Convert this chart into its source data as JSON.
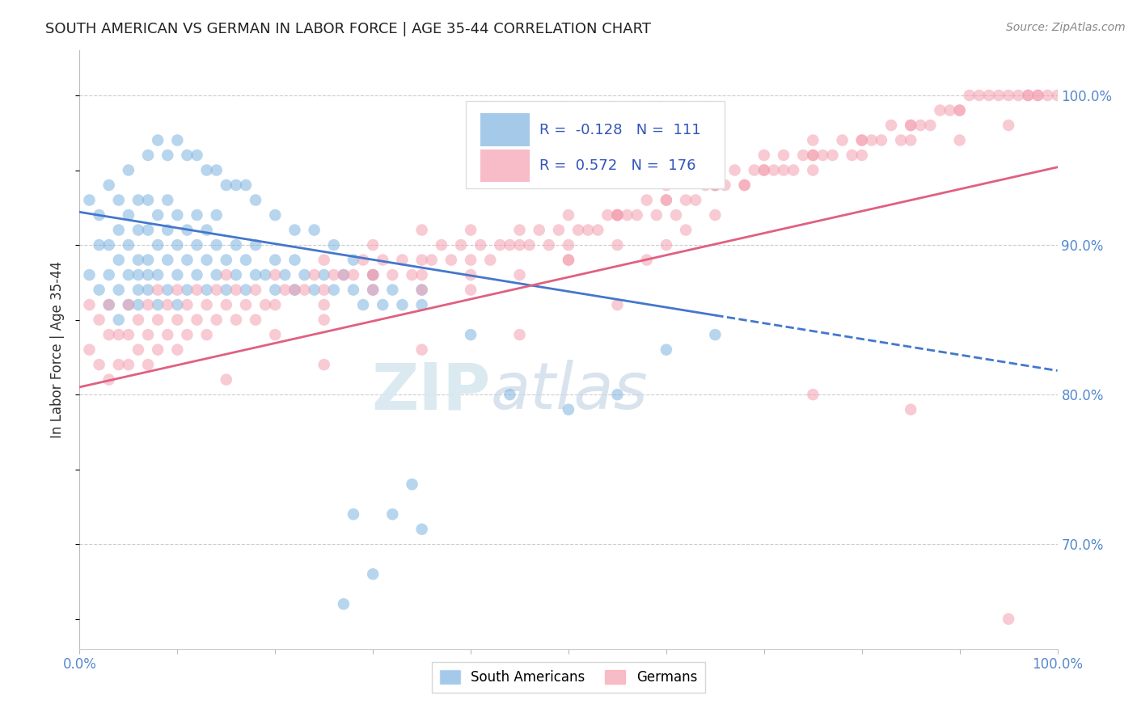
{
  "title": "SOUTH AMERICAN VS GERMAN IN LABOR FORCE | AGE 35-44 CORRELATION CHART",
  "source_text": "Source: ZipAtlas.com",
  "ylabel": "In Labor Force | Age 35-44",
  "xlim": [
    0.0,
    1.0
  ],
  "ylim": [
    0.63,
    1.03
  ],
  "x_ticks": [
    0.0,
    0.1,
    0.2,
    0.3,
    0.4,
    0.5,
    0.6,
    0.7,
    0.8,
    0.9,
    1.0
  ],
  "x_tick_labels": [
    "0.0%",
    "",
    "",
    "",
    "",
    "",
    "",
    "",
    "",
    "",
    "100.0%"
  ],
  "y_ticks_right": [
    0.7,
    0.8,
    0.9,
    1.0
  ],
  "y_tick_labels_right": [
    "70.0%",
    "80.0%",
    "90.0%",
    "100.0%"
  ],
  "grid_color": "#cccccc",
  "background_color": "#ffffff",
  "blue_color": "#7fb3e0",
  "pink_color": "#f4a0b0",
  "blue_line_color": "#4477cc",
  "pink_line_color": "#e06080",
  "R_blue": -0.128,
  "N_blue": 111,
  "R_pink": 0.572,
  "N_pink": 176,
  "watermark_zip": "ZIP",
  "watermark_atlas": "atlas",
  "legend_blue_label": "South Americans",
  "legend_pink_label": "Germans",
  "blue_line_x0": 0.0,
  "blue_line_y0": 0.922,
  "blue_line_x1": 0.65,
  "blue_line_y1": 0.853,
  "blue_line_dash_x0": 0.65,
  "blue_line_dash_y0": 0.853,
  "blue_line_dash_x1": 1.0,
  "blue_line_dash_y1": 0.816,
  "pink_line_x0": 0.0,
  "pink_line_y0": 0.805,
  "pink_line_x1": 1.0,
  "pink_line_y1": 0.952,
  "blue_scatter_x": [
    0.01,
    0.01,
    0.02,
    0.02,
    0.02,
    0.03,
    0.03,
    0.03,
    0.03,
    0.04,
    0.04,
    0.04,
    0.04,
    0.04,
    0.05,
    0.05,
    0.05,
    0.05,
    0.05,
    0.06,
    0.06,
    0.06,
    0.06,
    0.06,
    0.06,
    0.07,
    0.07,
    0.07,
    0.07,
    0.07,
    0.08,
    0.08,
    0.08,
    0.08,
    0.09,
    0.09,
    0.09,
    0.09,
    0.1,
    0.1,
    0.1,
    0.1,
    0.11,
    0.11,
    0.11,
    0.12,
    0.12,
    0.12,
    0.13,
    0.13,
    0.13,
    0.14,
    0.14,
    0.14,
    0.15,
    0.15,
    0.16,
    0.16,
    0.17,
    0.17,
    0.18,
    0.18,
    0.19,
    0.2,
    0.2,
    0.21,
    0.22,
    0.22,
    0.23,
    0.24,
    0.25,
    0.26,
    0.27,
    0.28,
    0.29,
    0.3,
    0.31,
    0.32,
    0.33,
    0.35,
    0.07,
    0.08,
    0.09,
    0.1,
    0.11,
    0.12,
    0.13,
    0.14,
    0.15,
    0.16,
    0.17,
    0.18,
    0.2,
    0.22,
    0.24,
    0.26,
    0.28,
    0.3,
    0.35,
    0.4,
    0.34,
    0.28,
    0.35,
    0.32,
    0.3,
    0.27,
    0.44,
    0.5,
    0.55,
    0.6,
    0.65
  ],
  "blue_scatter_y": [
    0.88,
    0.93,
    0.87,
    0.9,
    0.92,
    0.86,
    0.88,
    0.9,
    0.94,
    0.85,
    0.87,
    0.89,
    0.91,
    0.93,
    0.86,
    0.88,
    0.9,
    0.92,
    0.95,
    0.87,
    0.89,
    0.91,
    0.93,
    0.86,
    0.88,
    0.87,
    0.89,
    0.91,
    0.93,
    0.88,
    0.86,
    0.88,
    0.9,
    0.92,
    0.87,
    0.89,
    0.91,
    0.93,
    0.86,
    0.88,
    0.9,
    0.92,
    0.87,
    0.89,
    0.91,
    0.88,
    0.9,
    0.92,
    0.87,
    0.89,
    0.91,
    0.88,
    0.9,
    0.92,
    0.87,
    0.89,
    0.88,
    0.9,
    0.87,
    0.89,
    0.88,
    0.9,
    0.88,
    0.87,
    0.89,
    0.88,
    0.87,
    0.89,
    0.88,
    0.87,
    0.88,
    0.87,
    0.88,
    0.87,
    0.86,
    0.87,
    0.86,
    0.87,
    0.86,
    0.87,
    0.96,
    0.97,
    0.96,
    0.97,
    0.96,
    0.96,
    0.95,
    0.95,
    0.94,
    0.94,
    0.94,
    0.93,
    0.92,
    0.91,
    0.91,
    0.9,
    0.89,
    0.88,
    0.86,
    0.84,
    0.74,
    0.72,
    0.71,
    0.72,
    0.68,
    0.66,
    0.8,
    0.79,
    0.8,
    0.83,
    0.84
  ],
  "pink_scatter_x": [
    0.01,
    0.01,
    0.02,
    0.02,
    0.03,
    0.03,
    0.03,
    0.04,
    0.04,
    0.05,
    0.05,
    0.05,
    0.06,
    0.06,
    0.07,
    0.07,
    0.07,
    0.08,
    0.08,
    0.08,
    0.09,
    0.09,
    0.1,
    0.1,
    0.1,
    0.11,
    0.11,
    0.12,
    0.12,
    0.13,
    0.13,
    0.14,
    0.14,
    0.15,
    0.15,
    0.16,
    0.16,
    0.17,
    0.18,
    0.18,
    0.19,
    0.2,
    0.2,
    0.21,
    0.22,
    0.23,
    0.24,
    0.25,
    0.25,
    0.26,
    0.27,
    0.28,
    0.29,
    0.3,
    0.3,
    0.31,
    0.32,
    0.33,
    0.34,
    0.35,
    0.35,
    0.36,
    0.37,
    0.38,
    0.39,
    0.4,
    0.4,
    0.41,
    0.42,
    0.43,
    0.44,
    0.45,
    0.45,
    0.46,
    0.47,
    0.48,
    0.49,
    0.5,
    0.5,
    0.51,
    0.52,
    0.53,
    0.54,
    0.55,
    0.55,
    0.56,
    0.57,
    0.58,
    0.59,
    0.6,
    0.6,
    0.61,
    0.62,
    0.63,
    0.64,
    0.65,
    0.65,
    0.66,
    0.67,
    0.68,
    0.69,
    0.7,
    0.71,
    0.72,
    0.73,
    0.74,
    0.75,
    0.76,
    0.77,
    0.78,
    0.79,
    0.8,
    0.81,
    0.82,
    0.83,
    0.84,
    0.85,
    0.86,
    0.87,
    0.88,
    0.89,
    0.9,
    0.91,
    0.92,
    0.93,
    0.94,
    0.95,
    0.96,
    0.97,
    0.98,
    0.99,
    1.0,
    0.7,
    0.75,
    0.8,
    0.85,
    0.9,
    0.95,
    0.97,
    0.98,
    0.5,
    0.55,
    0.6,
    0.65,
    0.4,
    0.45,
    0.5,
    0.3,
    0.35,
    0.25,
    0.3,
    0.35,
    0.4,
    0.2,
    0.25,
    0.65,
    0.6,
    0.55,
    0.7,
    0.75,
    0.75,
    0.8,
    0.85,
    0.9,
    0.62,
    0.58,
    0.68,
    0.72,
    0.55,
    0.45,
    0.35,
    0.25,
    0.15,
    0.75,
    0.85,
    0.95
  ],
  "pink_scatter_y": [
    0.83,
    0.86,
    0.82,
    0.85,
    0.81,
    0.84,
    0.86,
    0.82,
    0.84,
    0.82,
    0.84,
    0.86,
    0.83,
    0.85,
    0.82,
    0.84,
    0.86,
    0.83,
    0.85,
    0.87,
    0.84,
    0.86,
    0.83,
    0.85,
    0.87,
    0.84,
    0.86,
    0.85,
    0.87,
    0.84,
    0.86,
    0.85,
    0.87,
    0.86,
    0.88,
    0.85,
    0.87,
    0.86,
    0.85,
    0.87,
    0.86,
    0.86,
    0.88,
    0.87,
    0.87,
    0.87,
    0.88,
    0.87,
    0.89,
    0.88,
    0.88,
    0.88,
    0.89,
    0.88,
    0.9,
    0.89,
    0.88,
    0.89,
    0.88,
    0.89,
    0.91,
    0.89,
    0.9,
    0.89,
    0.9,
    0.89,
    0.91,
    0.9,
    0.89,
    0.9,
    0.9,
    0.9,
    0.91,
    0.9,
    0.91,
    0.9,
    0.91,
    0.9,
    0.92,
    0.91,
    0.91,
    0.91,
    0.92,
    0.92,
    0.92,
    0.92,
    0.92,
    0.93,
    0.92,
    0.93,
    0.94,
    0.92,
    0.93,
    0.93,
    0.94,
    0.94,
    0.94,
    0.94,
    0.95,
    0.94,
    0.95,
    0.95,
    0.95,
    0.96,
    0.95,
    0.96,
    0.96,
    0.96,
    0.96,
    0.97,
    0.96,
    0.97,
    0.97,
    0.97,
    0.98,
    0.97,
    0.98,
    0.98,
    0.98,
    0.99,
    0.99,
    0.99,
    1.0,
    1.0,
    1.0,
    1.0,
    1.0,
    1.0,
    1.0,
    1.0,
    1.0,
    1.0,
    0.96,
    0.97,
    0.97,
    0.98,
    0.99,
    0.98,
    1.0,
    1.0,
    0.89,
    0.9,
    0.9,
    0.92,
    0.88,
    0.88,
    0.89,
    0.88,
    0.88,
    0.86,
    0.87,
    0.87,
    0.87,
    0.84,
    0.85,
    0.94,
    0.93,
    0.92,
    0.95,
    0.95,
    0.96,
    0.96,
    0.97,
    0.97,
    0.91,
    0.89,
    0.94,
    0.95,
    0.86,
    0.84,
    0.83,
    0.82,
    0.81,
    0.8,
    0.79,
    0.65
  ]
}
